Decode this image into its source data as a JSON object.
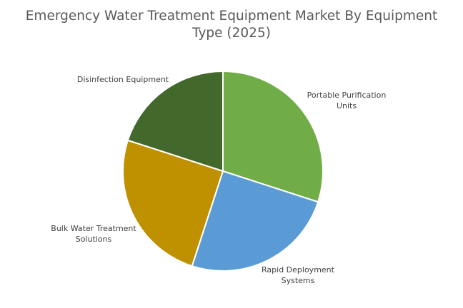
{
  "chart_data": {
    "type": "pie",
    "title": "Emergency Water Treatment Equipment Market By Equipment Type (2025)",
    "title_lines": [
      "Emergency Water Treatment Equipment Market By Equipment",
      "Type (2025)"
    ],
    "slices": [
      {
        "label": "Portable Purification Units",
        "label_lines": [
          "Portable Purification",
          "Units"
        ],
        "value": 30,
        "color": "#70ad47"
      },
      {
        "label": "Rapid Deployment Systems",
        "label_lines": [
          "Rapid Deployment",
          "Systems"
        ],
        "value": 25,
        "color": "#5b9bd5"
      },
      {
        "label": "Bulk Water Treatment Solutions",
        "label_lines": [
          "Bulk Water Treatment",
          "Solutions"
        ],
        "value": 25,
        "color": "#bf9000"
      },
      {
        "label": "Disinfection Equipment",
        "label_lines": [
          "Disinfection Equipment"
        ],
        "value": 20,
        "color": "#43682b"
      }
    ],
    "start_angle": "12 o'clock",
    "direction": "clockwise",
    "legend": "none",
    "label_color": "#404040",
    "title_color": "#595959"
  }
}
